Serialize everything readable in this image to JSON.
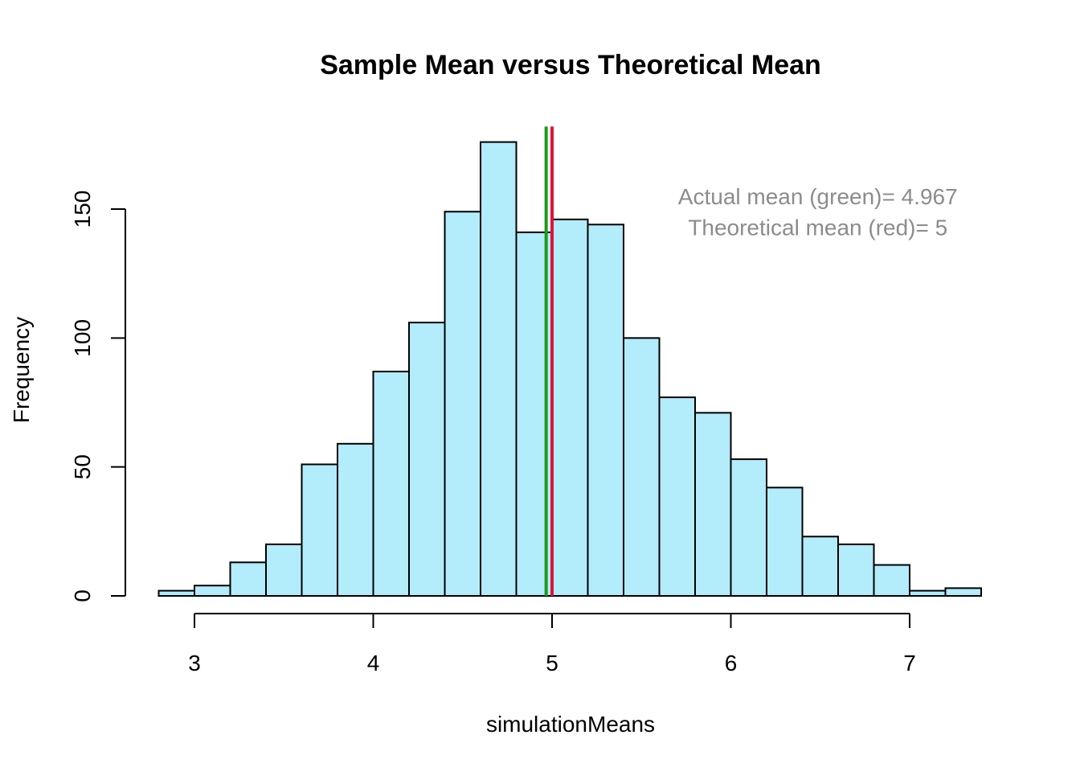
{
  "chart_data": {
    "type": "bar",
    "subtype": "histogram",
    "title": "Sample Mean versus Theoretical Mean",
    "xlabel": "simulationMeans",
    "ylabel": "Frequency",
    "bin_width": 0.2,
    "bins": [
      {
        "start": 2.8,
        "end": 3.0,
        "count": 2
      },
      {
        "start": 3.0,
        "end": 3.2,
        "count": 4
      },
      {
        "start": 3.2,
        "end": 3.4,
        "count": 13
      },
      {
        "start": 3.4,
        "end": 3.6,
        "count": 20
      },
      {
        "start": 3.6,
        "end": 3.8,
        "count": 51
      },
      {
        "start": 3.8,
        "end": 4.0,
        "count": 59
      },
      {
        "start": 4.0,
        "end": 4.2,
        "count": 87
      },
      {
        "start": 4.2,
        "end": 4.4,
        "count": 106
      },
      {
        "start": 4.4,
        "end": 4.6,
        "count": 149
      },
      {
        "start": 4.6,
        "end": 4.8,
        "count": 176
      },
      {
        "start": 4.8,
        "end": 5.0,
        "count": 141
      },
      {
        "start": 5.0,
        "end": 5.2,
        "count": 146
      },
      {
        "start": 5.2,
        "end": 5.4,
        "count": 144
      },
      {
        "start": 5.4,
        "end": 5.6,
        "count": 100
      },
      {
        "start": 5.6,
        "end": 5.8,
        "count": 77
      },
      {
        "start": 5.8,
        "end": 6.0,
        "count": 71
      },
      {
        "start": 6.0,
        "end": 6.2,
        "count": 53
      },
      {
        "start": 6.2,
        "end": 6.4,
        "count": 42
      },
      {
        "start": 6.4,
        "end": 6.6,
        "count": 23
      },
      {
        "start": 6.6,
        "end": 6.8,
        "count": 20
      },
      {
        "start": 6.8,
        "end": 7.0,
        "count": 12
      },
      {
        "start": 7.0,
        "end": 7.2,
        "count": 2
      },
      {
        "start": 7.2,
        "end": 7.4,
        "count": 3
      }
    ],
    "x_ticks": [
      3,
      4,
      5,
      6,
      7
    ],
    "y_ticks": [
      0,
      50,
      100,
      150
    ],
    "xlim": [
      2.8,
      7.4
    ],
    "ylim": [
      0,
      180
    ],
    "grid": false,
    "bar_color": "#b3ecfb",
    "vertical_lines": [
      {
        "x": 4.967,
        "color": "#1a9a1a"
      },
      {
        "x": 5,
        "color": "#dc143c"
      }
    ],
    "annotations": [
      {
        "text": "Actual mean (green)=  4.967",
        "x": 6.5,
        "y": 155
      },
      {
        "text": "Theoretical mean (red)=  5",
        "x": 6.5,
        "y": 143
      }
    ]
  }
}
